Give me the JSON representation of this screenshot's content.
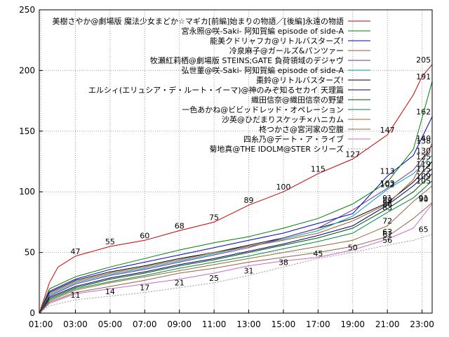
{
  "chart_data": {
    "type": "line",
    "x_ticks": [
      "01:00",
      "03:00",
      "05:00",
      "07:00",
      "09:00",
      "11:00",
      "13:00",
      "15:00",
      "17:00",
      "19:00",
      "21:00",
      "23:00"
    ],
    "xlim": [
      "00:55",
      "23:35"
    ],
    "y_ticks": [
      0,
      50,
      100,
      150,
      200,
      250
    ],
    "ylim": [
      0,
      250
    ],
    "grid": true,
    "legend": "top-right",
    "series": [
      {
        "name": "美樹さやか@劇場版 魔法少女まどか☆マギカ[前編]始まりの物語／[後編]永遠の物語",
        "color": "#cc0000",
        "points": [
          [
            "00:55",
            0
          ],
          [
            "01:30",
            25
          ],
          [
            "02:00",
            38
          ],
          [
            "03:00",
            47
          ],
          [
            "05:00",
            55
          ],
          [
            "07:00",
            60
          ],
          [
            "09:00",
            68
          ],
          [
            "11:00",
            75
          ],
          [
            "13:00",
            89
          ],
          [
            "15:00",
            100
          ],
          [
            "17:00",
            115
          ],
          [
            "19:00",
            127
          ],
          [
            "21:00",
            147
          ],
          [
            "22:30",
            180
          ],
          [
            "23:00",
            195
          ],
          [
            "23:35",
            205
          ]
        ],
        "labels": [
          [
            "03:00",
            47
          ],
          [
            "05:00",
            55
          ],
          [
            "07:00",
            60
          ],
          [
            "09:00",
            68
          ],
          [
            "11:00",
            75
          ],
          [
            "13:00",
            89
          ],
          [
            "15:00",
            100
          ],
          [
            "17:00",
            115
          ],
          [
            "19:00",
            127
          ],
          [
            "21:00",
            147
          ],
          [
            "23:00",
            205
          ]
        ]
      },
      {
        "name": "宮永照@咲-Saki- 阿知賀編 episode of side-A",
        "color": "#008000",
        "points": [
          [
            "00:55",
            0
          ],
          [
            "01:30",
            20
          ],
          [
            "03:00",
            30
          ],
          [
            "05:00",
            38
          ],
          [
            "07:00",
            45
          ],
          [
            "09:00",
            52
          ],
          [
            "11:00",
            58
          ],
          [
            "13:00",
            63
          ],
          [
            "15:00",
            70
          ],
          [
            "17:00",
            78
          ],
          [
            "19:00",
            90
          ],
          [
            "21:00",
            108
          ],
          [
            "22:30",
            135
          ],
          [
            "23:35",
            191
          ]
        ],
        "labels": [
          [
            "23:00",
            191
          ]
        ]
      },
      {
        "name": "能美クドリャフカ@リトルバスターズ!",
        "color": "#0000cc",
        "points": [
          [
            "00:55",
            0
          ],
          [
            "01:30",
            18
          ],
          [
            "03:00",
            28
          ],
          [
            "05:00",
            36
          ],
          [
            "07:00",
            42
          ],
          [
            "09:00",
            48
          ],
          [
            "11:00",
            54
          ],
          [
            "13:00",
            60
          ],
          [
            "15:00",
            66
          ],
          [
            "17:00",
            74
          ],
          [
            "19:00",
            82
          ],
          [
            "21:00",
            113
          ],
          [
            "22:30",
            130
          ],
          [
            "23:35",
            162
          ]
        ],
        "labels": [
          [
            "21:00",
            113
          ],
          [
            "23:00",
            162
          ]
        ]
      },
      {
        "name": "冷泉麻子@ガールズ&パンツァー",
        "color": "#a05a2c",
        "points": [
          [
            "00:55",
            0
          ],
          [
            "01:30",
            16
          ],
          [
            "03:00",
            26
          ],
          [
            "05:00",
            33
          ],
          [
            "07:00",
            38
          ],
          [
            "09:00",
            44
          ],
          [
            "11:00",
            50
          ],
          [
            "13:00",
            55
          ],
          [
            "15:00",
            60
          ],
          [
            "17:00",
            66
          ],
          [
            "19:00",
            76
          ],
          [
            "21:00",
            90
          ],
          [
            "22:30",
            110
          ],
          [
            "23:35",
            140
          ]
        ],
        "labels": [
          [
            "23:00",
            140
          ]
        ]
      },
      {
        "name": "牧瀬紅莉栖@劇場版 STEINS;GATE 負荷領域のデジャヴ",
        "color": "#6b2fa0",
        "points": [
          [
            "00:55",
            0
          ],
          [
            "01:30",
            14
          ],
          [
            "03:00",
            24
          ],
          [
            "05:00",
            31
          ],
          [
            "07:00",
            36
          ],
          [
            "09:00",
            42
          ],
          [
            "11:00",
            48
          ],
          [
            "13:00",
            54
          ],
          [
            "15:00",
            62
          ],
          [
            "17:00",
            70
          ],
          [
            "19:00",
            85
          ],
          [
            "21:00",
            103
          ],
          [
            "22:30",
            118
          ],
          [
            "23:35",
            138
          ]
        ],
        "labels": [
          [
            "21:00",
            103
          ],
          [
            "23:00",
            138
          ]
        ]
      },
      {
        "name": "弘世菫@咲-Saki- 阿知賀編 episode of side-A",
        "color": "#00aaaa",
        "points": [
          [
            "00:55",
            0
          ],
          [
            "01:30",
            15
          ],
          [
            "03:00",
            25
          ],
          [
            "05:00",
            32
          ],
          [
            "07:00",
            37
          ],
          [
            "09:00",
            43
          ],
          [
            "11:00",
            49
          ],
          [
            "13:00",
            55
          ],
          [
            "15:00",
            61
          ],
          [
            "17:00",
            68
          ],
          [
            "19:00",
            80
          ],
          [
            "21:00",
            102
          ],
          [
            "22:30",
            115
          ],
          [
            "23:35",
            130
          ]
        ],
        "labels": [
          [
            "21:00",
            102
          ],
          [
            "23:00",
            130
          ]
        ]
      },
      {
        "name": "棗鈴@リトルバスターズ!",
        "color": "#000000",
        "points": [
          [
            "00:55",
            0
          ],
          [
            "01:30",
            17
          ],
          [
            "03:00",
            27
          ],
          [
            "05:00",
            34
          ],
          [
            "07:00",
            39
          ],
          [
            "09:00",
            45
          ],
          [
            "11:00",
            50
          ],
          [
            "13:00",
            56
          ],
          [
            "15:00",
            62
          ],
          [
            "17:00",
            70
          ],
          [
            "19:00",
            78
          ],
          [
            "21:00",
            91
          ],
          [
            "22:30",
            108
          ],
          [
            "23:35",
            125
          ]
        ],
        "labels": [
          [
            "21:00",
            91
          ],
          [
            "23:00",
            125
          ]
        ]
      },
      {
        "name": "エルシィ(エリュシア・デ・ルート・イーマ)@神のみぞ知るセカイ 天理篇",
        "color": "#000080",
        "points": [
          [
            "00:55",
            0
          ],
          [
            "01:30",
            13
          ],
          [
            "03:00",
            22
          ],
          [
            "05:00",
            29
          ],
          [
            "07:00",
            34
          ],
          [
            "09:00",
            40
          ],
          [
            "11:00",
            45
          ],
          [
            "13:00",
            51
          ],
          [
            "15:00",
            57
          ],
          [
            "17:00",
            64
          ],
          [
            "19:00",
            72
          ],
          [
            "21:00",
            89
          ],
          [
            "22:30",
            105
          ],
          [
            "23:35",
            119
          ]
        ],
        "labels": [
          [
            "21:00",
            89
          ],
          [
            "23:00",
            119
          ]
        ]
      },
      {
        "name": "織田信奈@織田信奈の野望",
        "color": "#005500",
        "points": [
          [
            "00:55",
            0
          ],
          [
            "01:30",
            12
          ],
          [
            "03:00",
            21
          ],
          [
            "05:00",
            28
          ],
          [
            "07:00",
            33
          ],
          [
            "09:00",
            39
          ],
          [
            "11:00",
            44
          ],
          [
            "13:00",
            50
          ],
          [
            "15:00",
            56
          ],
          [
            "17:00",
            62
          ],
          [
            "19:00",
            70
          ],
          [
            "21:00",
            86
          ],
          [
            "22:30",
            100
          ],
          [
            "23:35",
            115
          ]
        ],
        "labels": [
          [
            "21:00",
            86
          ],
          [
            "23:00",
            115
          ]
        ]
      },
      {
        "name": "一色あかね@ビビッドレッド・オペレーション",
        "color": "#008844",
        "points": [
          [
            "00:55",
            0
          ],
          [
            "01:30",
            11
          ],
          [
            "03:00",
            20
          ],
          [
            "05:00",
            26
          ],
          [
            "07:00",
            31
          ],
          [
            "09:00",
            37
          ],
          [
            "11:00",
            42
          ],
          [
            "13:00",
            47
          ],
          [
            "15:00",
            53
          ],
          [
            "17:00",
            59
          ],
          [
            "19:00",
            66
          ],
          [
            "21:00",
            83
          ],
          [
            "22:30",
            95
          ],
          [
            "23:35",
            109
          ]
        ],
        "labels": [
          [
            "21:00",
            83
          ],
          [
            "23:00",
            109
          ]
        ]
      },
      {
        "name": "沙英@ひだまりスケッチ×ハニカム",
        "color": "#996633",
        "points": [
          [
            "00:55",
            0
          ],
          [
            "01:30",
            10
          ],
          [
            "03:00",
            19
          ],
          [
            "05:00",
            25
          ],
          [
            "07:00",
            30
          ],
          [
            "09:00",
            35
          ],
          [
            "11:00",
            40
          ],
          [
            "13:00",
            45
          ],
          [
            "15:00",
            50
          ],
          [
            "17:00",
            55
          ],
          [
            "19:00",
            60
          ],
          [
            "21:00",
            72
          ],
          [
            "22:30",
            92
          ],
          [
            "23:35",
            105
          ]
        ],
        "labels": [
          [
            "21:00",
            72
          ],
          [
            "23:00",
            105
          ]
        ]
      },
      {
        "name": "柊つかさ@宮河家の空腹",
        "color": "#886644",
        "points": [
          [
            "00:55",
            0
          ],
          [
            "01:30",
            9
          ],
          [
            "03:00",
            17
          ],
          [
            "05:00",
            22
          ],
          [
            "07:00",
            27
          ],
          [
            "09:00",
            33
          ],
          [
            "11:00",
            37
          ],
          [
            "13:00",
            42
          ],
          [
            "15:00",
            46
          ],
          [
            "17:00",
            50
          ],
          [
            "19:00",
            55
          ],
          [
            "21:00",
            63
          ],
          [
            "22:30",
            78
          ],
          [
            "23:35",
            91
          ]
        ],
        "labels": [
          [
            "21:00",
            63
          ],
          [
            "23:00",
            91
          ]
        ]
      },
      {
        "name": "四糸乃@デート・ア・ライブ",
        "color": "#cc66cc",
        "points": [
          [
            "00:55",
            0
          ],
          [
            "01:30",
            8
          ],
          [
            "03:00",
            16
          ],
          [
            "05:00",
            20
          ],
          [
            "07:00",
            24
          ],
          [
            "09:00",
            28
          ],
          [
            "11:00",
            33
          ],
          [
            "13:00",
            39
          ],
          [
            "15:00",
            43
          ],
          [
            "17:00",
            46
          ],
          [
            "19:00",
            52
          ],
          [
            "21:00",
            61
          ],
          [
            "22:30",
            70
          ],
          [
            "23:35",
            90
          ]
        ],
        "labels": [
          [
            "21:00",
            61
          ],
          [
            "23:00",
            90
          ]
        ]
      },
      {
        "name": "菊地真@THE IDOLM@STER シリーズ",
        "color": "#999999",
        "points": [
          [
            "00:55",
            0
          ],
          [
            "01:30",
            6
          ],
          [
            "03:00",
            11
          ],
          [
            "05:00",
            14
          ],
          [
            "07:00",
            17
          ],
          [
            "09:00",
            21
          ],
          [
            "11:00",
            25
          ],
          [
            "13:00",
            31
          ],
          [
            "15:00",
            38
          ],
          [
            "17:00",
            45
          ],
          [
            "19:00",
            50
          ],
          [
            "21:00",
            56
          ],
          [
            "22:30",
            60
          ],
          [
            "23:35",
            65
          ]
        ],
        "labels": [
          [
            "03:00",
            11
          ],
          [
            "05:00",
            14
          ],
          [
            "07:00",
            17
          ],
          [
            "09:00",
            21
          ],
          [
            "11:00",
            25
          ],
          [
            "13:00",
            31
          ],
          [
            "15:00",
            38
          ],
          [
            "17:00",
            45
          ],
          [
            "19:00",
            50
          ],
          [
            "21:00",
            56
          ],
          [
            "23:00",
            65
          ]
        ]
      }
    ]
  }
}
